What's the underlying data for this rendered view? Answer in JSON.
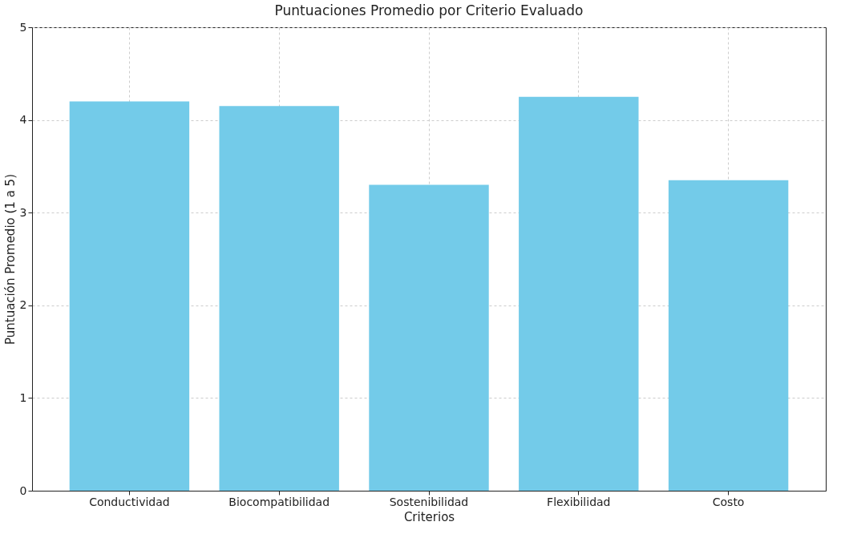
{
  "chart_data": {
    "type": "bar",
    "title": "Puntuaciones Promedio por Criterio Evaluado",
    "xlabel": "Criterios",
    "ylabel": "Puntuación Promedio (1 a 5)",
    "categories": [
      "Conductividad",
      "Biocompatibilidad",
      "Sostenibilidad",
      "Flexibilidad",
      "Costo"
    ],
    "values": [
      4.2,
      4.15,
      3.3,
      4.25,
      3.35
    ],
    "color": "#73cbe9",
    "ylim": [
      0,
      5
    ],
    "yticks": [
      0,
      1,
      2,
      3,
      4,
      5
    ],
    "grid": true
  }
}
